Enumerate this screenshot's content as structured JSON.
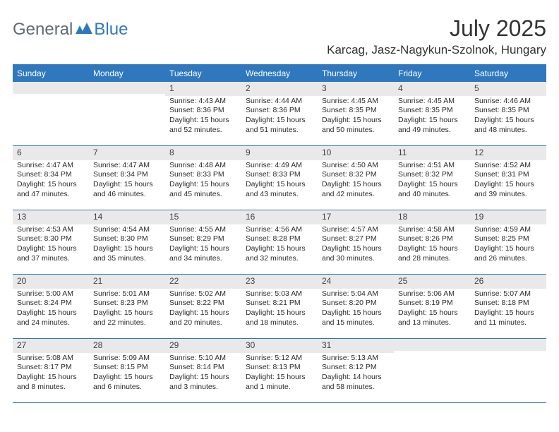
{
  "logo": {
    "part1": "General",
    "part2": "Blue"
  },
  "title": "July 2025",
  "location": "Karcag, Jasz-Nagykun-Szolnok, Hungary",
  "weekdays": [
    "Sunday",
    "Monday",
    "Tuesday",
    "Wednesday",
    "Thursday",
    "Friday",
    "Saturday"
  ],
  "colors": {
    "accent": "#2f78bd",
    "daybar": "#e9e9e9",
    "text": "#333333",
    "logo_gray": "#5f6a72"
  },
  "weeks": [
    [
      {
        "day": "",
        "sunrise": "",
        "sunset": "",
        "daylight": ""
      },
      {
        "day": "",
        "sunrise": "",
        "sunset": "",
        "daylight": ""
      },
      {
        "day": "1",
        "sunrise": "Sunrise: 4:43 AM",
        "sunset": "Sunset: 8:36 PM",
        "daylight": "Daylight: 15 hours and 52 minutes."
      },
      {
        "day": "2",
        "sunrise": "Sunrise: 4:44 AM",
        "sunset": "Sunset: 8:36 PM",
        "daylight": "Daylight: 15 hours and 51 minutes."
      },
      {
        "day": "3",
        "sunrise": "Sunrise: 4:45 AM",
        "sunset": "Sunset: 8:35 PM",
        "daylight": "Daylight: 15 hours and 50 minutes."
      },
      {
        "day": "4",
        "sunrise": "Sunrise: 4:45 AM",
        "sunset": "Sunset: 8:35 PM",
        "daylight": "Daylight: 15 hours and 49 minutes."
      },
      {
        "day": "5",
        "sunrise": "Sunrise: 4:46 AM",
        "sunset": "Sunset: 8:35 PM",
        "daylight": "Daylight: 15 hours and 48 minutes."
      }
    ],
    [
      {
        "day": "6",
        "sunrise": "Sunrise: 4:47 AM",
        "sunset": "Sunset: 8:34 PM",
        "daylight": "Daylight: 15 hours and 47 minutes."
      },
      {
        "day": "7",
        "sunrise": "Sunrise: 4:47 AM",
        "sunset": "Sunset: 8:34 PM",
        "daylight": "Daylight: 15 hours and 46 minutes."
      },
      {
        "day": "8",
        "sunrise": "Sunrise: 4:48 AM",
        "sunset": "Sunset: 8:33 PM",
        "daylight": "Daylight: 15 hours and 45 minutes."
      },
      {
        "day": "9",
        "sunrise": "Sunrise: 4:49 AM",
        "sunset": "Sunset: 8:33 PM",
        "daylight": "Daylight: 15 hours and 43 minutes."
      },
      {
        "day": "10",
        "sunrise": "Sunrise: 4:50 AM",
        "sunset": "Sunset: 8:32 PM",
        "daylight": "Daylight: 15 hours and 42 minutes."
      },
      {
        "day": "11",
        "sunrise": "Sunrise: 4:51 AM",
        "sunset": "Sunset: 8:32 PM",
        "daylight": "Daylight: 15 hours and 40 minutes."
      },
      {
        "day": "12",
        "sunrise": "Sunrise: 4:52 AM",
        "sunset": "Sunset: 8:31 PM",
        "daylight": "Daylight: 15 hours and 39 minutes."
      }
    ],
    [
      {
        "day": "13",
        "sunrise": "Sunrise: 4:53 AM",
        "sunset": "Sunset: 8:30 PM",
        "daylight": "Daylight: 15 hours and 37 minutes."
      },
      {
        "day": "14",
        "sunrise": "Sunrise: 4:54 AM",
        "sunset": "Sunset: 8:30 PM",
        "daylight": "Daylight: 15 hours and 35 minutes."
      },
      {
        "day": "15",
        "sunrise": "Sunrise: 4:55 AM",
        "sunset": "Sunset: 8:29 PM",
        "daylight": "Daylight: 15 hours and 34 minutes."
      },
      {
        "day": "16",
        "sunrise": "Sunrise: 4:56 AM",
        "sunset": "Sunset: 8:28 PM",
        "daylight": "Daylight: 15 hours and 32 minutes."
      },
      {
        "day": "17",
        "sunrise": "Sunrise: 4:57 AM",
        "sunset": "Sunset: 8:27 PM",
        "daylight": "Daylight: 15 hours and 30 minutes."
      },
      {
        "day": "18",
        "sunrise": "Sunrise: 4:58 AM",
        "sunset": "Sunset: 8:26 PM",
        "daylight": "Daylight: 15 hours and 28 minutes."
      },
      {
        "day": "19",
        "sunrise": "Sunrise: 4:59 AM",
        "sunset": "Sunset: 8:25 PM",
        "daylight": "Daylight: 15 hours and 26 minutes."
      }
    ],
    [
      {
        "day": "20",
        "sunrise": "Sunrise: 5:00 AM",
        "sunset": "Sunset: 8:24 PM",
        "daylight": "Daylight: 15 hours and 24 minutes."
      },
      {
        "day": "21",
        "sunrise": "Sunrise: 5:01 AM",
        "sunset": "Sunset: 8:23 PM",
        "daylight": "Daylight: 15 hours and 22 minutes."
      },
      {
        "day": "22",
        "sunrise": "Sunrise: 5:02 AM",
        "sunset": "Sunset: 8:22 PM",
        "daylight": "Daylight: 15 hours and 20 minutes."
      },
      {
        "day": "23",
        "sunrise": "Sunrise: 5:03 AM",
        "sunset": "Sunset: 8:21 PM",
        "daylight": "Daylight: 15 hours and 18 minutes."
      },
      {
        "day": "24",
        "sunrise": "Sunrise: 5:04 AM",
        "sunset": "Sunset: 8:20 PM",
        "daylight": "Daylight: 15 hours and 15 minutes."
      },
      {
        "day": "25",
        "sunrise": "Sunrise: 5:06 AM",
        "sunset": "Sunset: 8:19 PM",
        "daylight": "Daylight: 15 hours and 13 minutes."
      },
      {
        "day": "26",
        "sunrise": "Sunrise: 5:07 AM",
        "sunset": "Sunset: 8:18 PM",
        "daylight": "Daylight: 15 hours and 11 minutes."
      }
    ],
    [
      {
        "day": "27",
        "sunrise": "Sunrise: 5:08 AM",
        "sunset": "Sunset: 8:17 PM",
        "daylight": "Daylight: 15 hours and 8 minutes."
      },
      {
        "day": "28",
        "sunrise": "Sunrise: 5:09 AM",
        "sunset": "Sunset: 8:15 PM",
        "daylight": "Daylight: 15 hours and 6 minutes."
      },
      {
        "day": "29",
        "sunrise": "Sunrise: 5:10 AM",
        "sunset": "Sunset: 8:14 PM",
        "daylight": "Daylight: 15 hours and 3 minutes."
      },
      {
        "day": "30",
        "sunrise": "Sunrise: 5:12 AM",
        "sunset": "Sunset: 8:13 PM",
        "daylight": "Daylight: 15 hours and 1 minute."
      },
      {
        "day": "31",
        "sunrise": "Sunrise: 5:13 AM",
        "sunset": "Sunset: 8:12 PM",
        "daylight": "Daylight: 14 hours and 58 minutes."
      },
      {
        "day": "",
        "sunrise": "",
        "sunset": "",
        "daylight": ""
      },
      {
        "day": "",
        "sunrise": "",
        "sunset": "",
        "daylight": ""
      }
    ]
  ]
}
